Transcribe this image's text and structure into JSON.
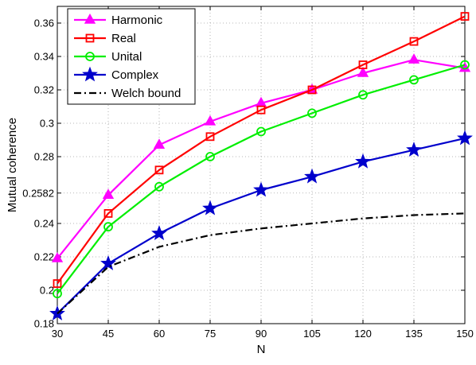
{
  "chart_data": {
    "type": "line",
    "title": "",
    "xlabel": "N",
    "ylabel": "Mutual coherence",
    "xlim": [
      30,
      150
    ],
    "ylim": [
      0.18,
      0.37
    ],
    "x": [
      30,
      45,
      60,
      75,
      90,
      105,
      120,
      135,
      150
    ],
    "x_ticks": [
      "30",
      "45",
      "60",
      "75",
      "90",
      "105",
      "120",
      "135",
      "150"
    ],
    "y_ticks": [
      {
        "value": 0.18,
        "label": "0.18"
      },
      {
        "value": 0.2,
        "label": "0.2"
      },
      {
        "value": 0.22,
        "label": "0.22"
      },
      {
        "value": 0.24,
        "label": "0.24"
      },
      {
        "value": 0.2582,
        "label": "0.2582"
      },
      {
        "value": 0.28,
        "label": "0.28"
      },
      {
        "value": 0.3,
        "label": "0.3"
      },
      {
        "value": 0.32,
        "label": "0.32"
      },
      {
        "value": 0.34,
        "label": "0.34"
      },
      {
        "value": 0.36,
        "label": "0.36"
      }
    ],
    "grid": true,
    "legend_position": "top-left",
    "series": [
      {
        "name": "Harmonic",
        "color": "#ff00ff",
        "marker": "triangle",
        "line": "solid",
        "values": [
          0.219,
          0.257,
          0.287,
          0.301,
          0.312,
          0.32,
          0.33,
          0.338,
          0.333
        ]
      },
      {
        "name": "Real",
        "color": "#ff0000",
        "marker": "square",
        "line": "solid",
        "values": [
          0.204,
          0.246,
          0.272,
          0.292,
          0.308,
          0.32,
          0.335,
          0.349,
          0.364
        ]
      },
      {
        "name": "Unital",
        "color": "#00ee00",
        "marker": "circle",
        "line": "solid",
        "values": [
          0.198,
          0.238,
          0.262,
          0.28,
          0.295,
          0.306,
          0.317,
          0.326,
          0.335
        ]
      },
      {
        "name": "Complex",
        "color": "#0000cc",
        "marker": "star",
        "line": "solid",
        "values": [
          0.186,
          0.216,
          0.234,
          0.249,
          0.26,
          0.268,
          0.277,
          0.284,
          0.291
        ]
      },
      {
        "name": "Welch bound",
        "color": "#000000",
        "marker": "none",
        "line": "dashdot",
        "values": [
          0.186,
          0.214,
          0.226,
          0.233,
          0.237,
          0.24,
          0.243,
          0.245,
          0.246
        ]
      }
    ]
  }
}
